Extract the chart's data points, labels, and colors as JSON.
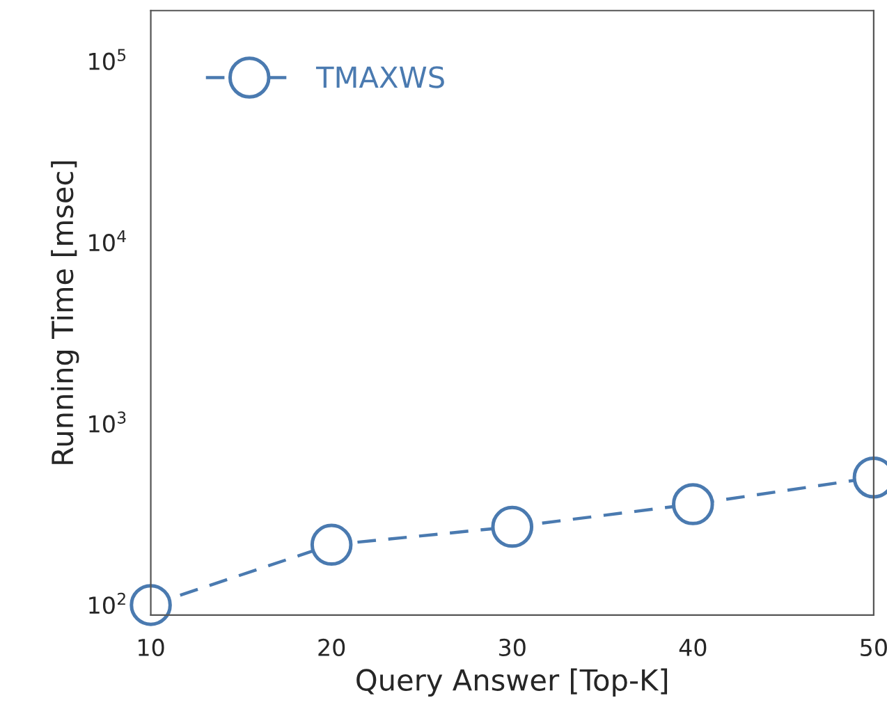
{
  "chart_data": {
    "type": "line",
    "xlabel": "Query Answer [Top-K]",
    "ylabel": "Running Time [msec]",
    "x": [
      10,
      20,
      30,
      40,
      50
    ],
    "series": [
      {
        "name": "TMAXWS",
        "color": "#4a7ab0",
        "values": [
          100,
          215,
          270,
          360,
          505
        ]
      }
    ],
    "xlim": [
      10,
      50
    ],
    "xticks": [
      10,
      20,
      30,
      40,
      50
    ],
    "ylim": [
      88,
      190000
    ],
    "yticks": [
      {
        "value": 100,
        "label": "10$^{2}$"
      },
      {
        "value": 1000,
        "label": "10$^{3}$"
      },
      {
        "value": 10000,
        "label": "10$^{4}$"
      },
      {
        "value": 100000,
        "label": "10$^{5}$"
      }
    ],
    "log": true,
    "grid": false,
    "legend": "top left",
    "marker": "circle",
    "line_style": "dashed"
  }
}
